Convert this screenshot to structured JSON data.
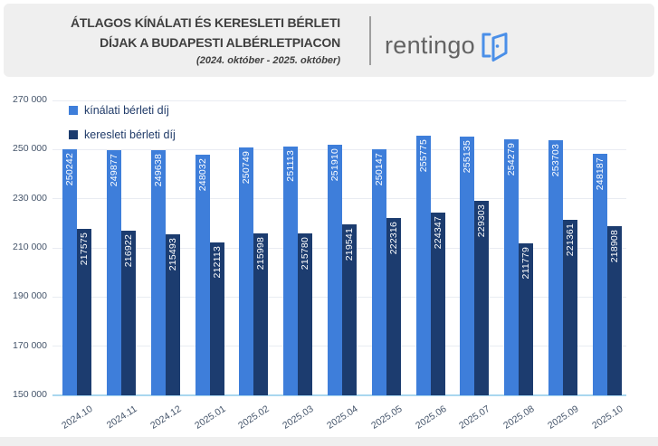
{
  "header": {
    "title_line1": "ÁTLAGOS KÍNÁLATI ÉS KERESLETI BÉRLETI",
    "title_line2": "DÍJAK A BUDAPESTI ALBÉRLETPIACON",
    "subtitle": "(2024. október - 2025. október)",
    "brand": "rentingo"
  },
  "colors": {
    "offer_blue": "#3e7eda",
    "demand_navy": "#1c3c6f",
    "baseline_blue": "#a9d7ef",
    "gridline_gray": "#e9ecf2",
    "axis_text": "#44546a",
    "header_gray": "#efefef",
    "logo_icon_blue": "#4a8fe8"
  },
  "chart_data": {
    "type": "bar",
    "title": "Átlagos kínálati és keresleti bérleti díjak a budapesti albérletpiacon",
    "categories": [
      "2024.10",
      "2024.11",
      "2024.12",
      "2025.01",
      "2025.02",
      "2025.03",
      "2025.04",
      "2025.05",
      "2025.06",
      "2025.07",
      "2025.08",
      "2025.09",
      "2025.10"
    ],
    "series": [
      {
        "name": "kínálati bérleti díj",
        "color": "#3e7eda",
        "values": [
          250242,
          249877,
          249638,
          248032,
          250749,
          251113,
          251910,
          250147,
          255775,
          255135,
          254279,
          253703,
          248187
        ]
      },
      {
        "name": "keresleti bérleti díj",
        "color": "#1c3c6f",
        "values": [
          217575,
          216922,
          215493,
          212113,
          215998,
          215780,
          219541,
          222316,
          224347,
          229303,
          211779,
          221361,
          218908
        ]
      }
    ],
    "xlabel": "",
    "ylabel": "",
    "ylim": [
      150000,
      270000
    ],
    "ytick_step": 20000,
    "ytick_labels": [
      "270 000",
      "250 000",
      "230 000",
      "210 000",
      "190 000",
      "170 000",
      "150 000"
    ],
    "grid": true,
    "legend_position": "top-left",
    "value_labels": "inside-top-vertical"
  }
}
